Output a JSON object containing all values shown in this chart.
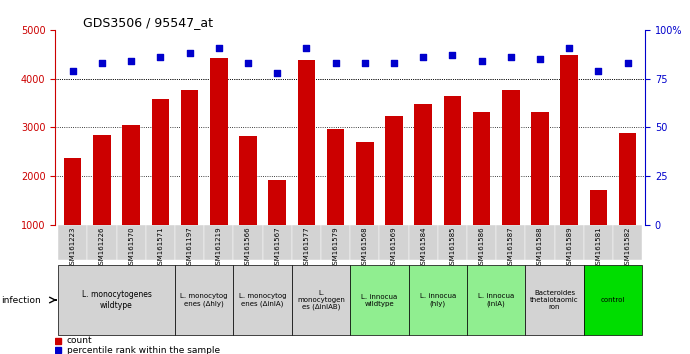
{
  "title": "GDS3506 / 95547_at",
  "samples": [
    "GSM161223",
    "GSM161226",
    "GSM161570",
    "GSM161571",
    "GSM161197",
    "GSM161219",
    "GSM161566",
    "GSM161567",
    "GSM161577",
    "GSM161579",
    "GSM161568",
    "GSM161569",
    "GSM161584",
    "GSM161585",
    "GSM161586",
    "GSM161587",
    "GSM161588",
    "GSM161589",
    "GSM161581",
    "GSM161582"
  ],
  "counts": [
    2380,
    2850,
    3040,
    3580,
    3760,
    4420,
    2820,
    1930,
    4380,
    2960,
    2710,
    3240,
    3490,
    3650,
    3320,
    3770,
    3310,
    4480,
    1720,
    2890
  ],
  "percentiles": [
    79,
    83,
    84,
    86,
    88,
    91,
    83,
    78,
    91,
    83,
    83,
    83,
    86,
    87,
    84,
    86,
    85,
    91,
    79,
    83
  ],
  "groups": [
    {
      "label": "L. monocytogenes\nwildtype",
      "count": 4,
      "color": "#d3d3d3"
    },
    {
      "label": "L. monocytog\nenes (Δhly)",
      "count": 2,
      "color": "#d3d3d3"
    },
    {
      "label": "L. monocytog\nenes (ΔinlA)",
      "count": 2,
      "color": "#d3d3d3"
    },
    {
      "label": "L.\nmonocytogen\nes (ΔinlAB)",
      "count": 2,
      "color": "#d3d3d3"
    },
    {
      "label": "L. innocua\nwildtype",
      "count": 2,
      "color": "#90ee90"
    },
    {
      "label": "L. innocua\n(hly)",
      "count": 2,
      "color": "#90ee90"
    },
    {
      "label": "L. innocua\n(inlA)",
      "count": 2,
      "color": "#90ee90"
    },
    {
      "label": "Bacteroides\nthetaiotaomic\nron",
      "count": 2,
      "color": "#d3d3d3"
    },
    {
      "label": "control",
      "count": 2,
      "color": "#00dd00"
    }
  ],
  "bar_color": "#cc0000",
  "dot_color": "#0000cc",
  "ylim_left": [
    1000,
    5000
  ],
  "ylim_right": [
    0,
    100
  ],
  "yticks_left": [
    1000,
    2000,
    3000,
    4000,
    5000
  ],
  "yticks_right": [
    0,
    25,
    50,
    75,
    100
  ],
  "grid_vals": [
    2000,
    3000,
    4000
  ],
  "xtick_bg": "#d3d3d3"
}
